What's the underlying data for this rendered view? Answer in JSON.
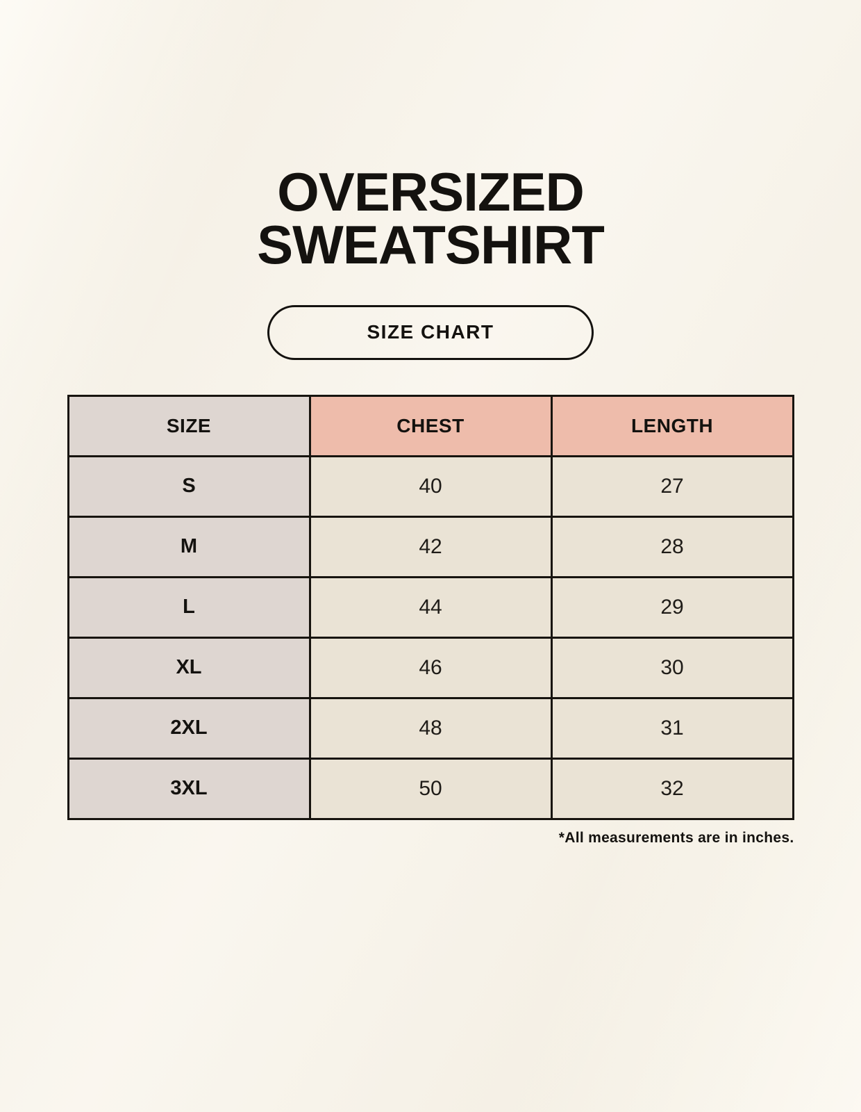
{
  "header": {
    "title_line1": "OVERSIZED",
    "title_line2": "SWEATSHIRT",
    "badge_label": "SIZE CHART"
  },
  "chart_data": {
    "type": "table",
    "title": "OVERSIZED SWEATSHIRT",
    "subtitle": "SIZE CHART",
    "columns": [
      "SIZE",
      "CHEST",
      "LENGTH"
    ],
    "rows": [
      [
        "S",
        40,
        27
      ],
      [
        "M",
        42,
        28
      ],
      [
        "L",
        44,
        29
      ],
      [
        "XL",
        46,
        30
      ],
      [
        "2XL",
        48,
        31
      ],
      [
        "3XL",
        50,
        32
      ]
    ],
    "units": "inches",
    "note": "*All measurements are in inches."
  },
  "colors": {
    "background": "#f7f3ea",
    "size_column_bg": "#ded6d1",
    "header_accent_bg": "#eebcab",
    "value_cell_bg": "#eae3d5",
    "border": "#17140f",
    "text": "#14120f"
  }
}
